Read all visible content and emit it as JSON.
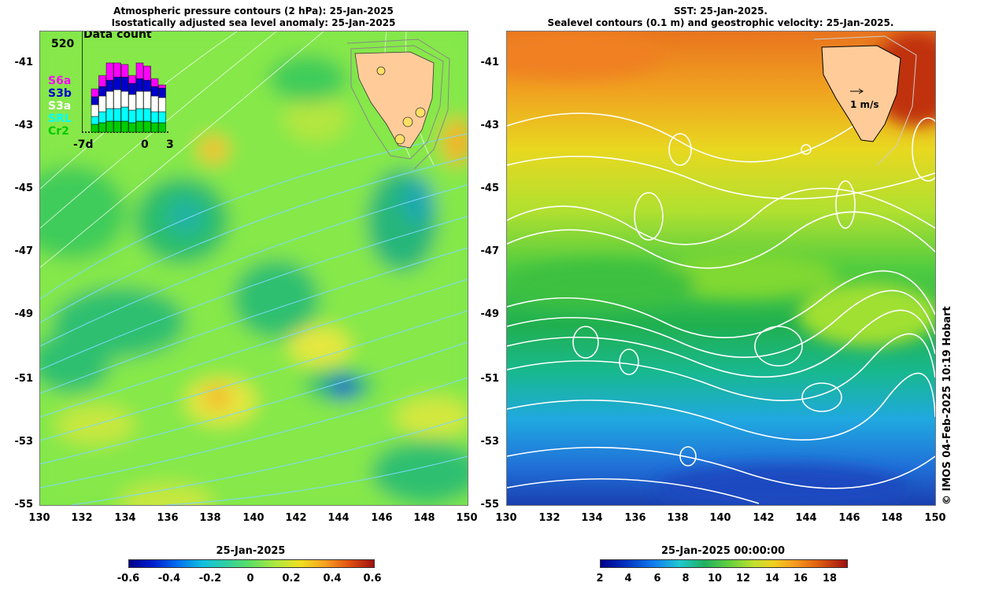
{
  "left_panel": {
    "title_line1": "Atmospheric pressure contours (2 hPa): 25-Jan-2025",
    "title_line2": "Isostatically adjusted sea level anomaly: 25-Jan-2025",
    "inset": {
      "title": "Data count",
      "max_label": "520",
      "x_labels": [
        "-7d",
        "0",
        "3"
      ],
      "satellites": [
        {
          "name": "S6a",
          "color": "#ff00ff"
        },
        {
          "name": "S3b",
          "color": "#0000cc"
        },
        {
          "name": "S3a",
          "color": "#ffffff"
        },
        {
          "name": "SRL",
          "color": "#00ffff"
        },
        {
          "name": "Cr2",
          "color": "#00cc00"
        }
      ]
    },
    "colorbar": {
      "title": "25-Jan-2025",
      "ticks": [
        "-0.6",
        "-0.4",
        "-0.2",
        "0",
        "0.2",
        "0.4",
        "0.6"
      ]
    }
  },
  "right_panel": {
    "title_line1": "SST: 25-Jan-2025.",
    "title_line2": "Sealevel contours (0.1 m) and geostrophic velocity: 25-Jan-2025.",
    "velocity_label": "1 m/s",
    "colorbar": {
      "title": "25-Jan-2025 00:00:00",
      "ticks": [
        "2",
        "4",
        "6",
        "8",
        "10",
        "12",
        "14",
        "16",
        "18"
      ]
    }
  },
  "axes": {
    "lat_ticks": [
      "-41",
      "-43",
      "-45",
      "-47",
      "-49",
      "-51",
      "-53",
      "-55"
    ],
    "lon_ticks": [
      "130",
      "132",
      "134",
      "136",
      "138",
      "140",
      "142",
      "144",
      "146",
      "148",
      "150"
    ]
  },
  "copyright": "© IMOS 04-Feb-2025 10:19 Hobart",
  "colors": {
    "land": "#ffcc99",
    "pressure_contour": "#7fd8ff",
    "sealevel_contour": "#ffffff"
  }
}
